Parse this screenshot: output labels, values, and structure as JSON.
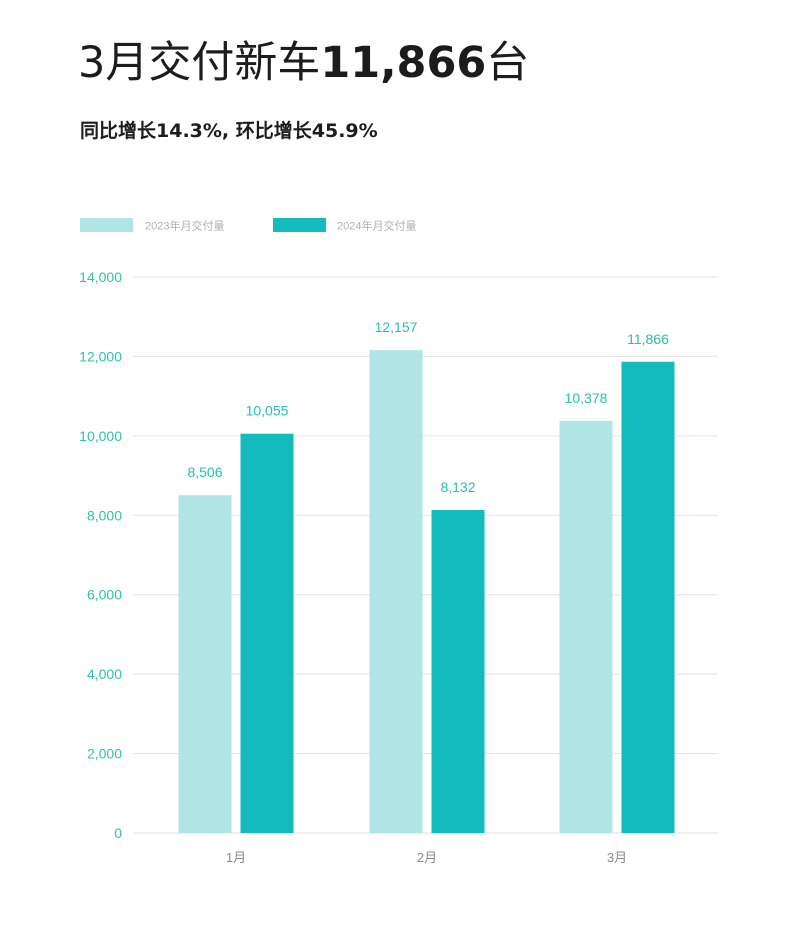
{
  "headline": {
    "prefix": "3月交付新车",
    "number": "11,866",
    "suffix": "台"
  },
  "subhead": "同比增长14.3%, 环比增长45.9%",
  "colors": {
    "series_2023": "#b1e5e5",
    "series_2024": "#13bbbd",
    "axis_text": "#2fbfae",
    "label_text": "#25c0ae",
    "gridline": "#e2e2e2",
    "category_text": "#8a8a8a",
    "legend_text": "#b0b0b0"
  },
  "chart_data": {
    "type": "bar",
    "categories": [
      "1月",
      "2月",
      "3月"
    ],
    "series": [
      {
        "name": "2023年月交付量",
        "values": [
          8506,
          12157,
          10378
        ],
        "labels": [
          "8,506",
          "12,157",
          "10,378"
        ]
      },
      {
        "name": "2024年月交付量",
        "values": [
          10055,
          8132,
          11866
        ],
        "labels": [
          "10,055",
          "8,132",
          "11,866"
        ]
      }
    ],
    "ylim": [
      0,
      14000
    ],
    "yticks": [
      0,
      2000,
      4000,
      6000,
      8000,
      10000,
      12000,
      14000
    ],
    "ytick_labels": [
      "0",
      "2,000",
      "4,000",
      "6,000",
      "8,000",
      "10,000",
      "12,000",
      "14,000"
    ],
    "grid": true,
    "legend_position": "top-left"
  }
}
